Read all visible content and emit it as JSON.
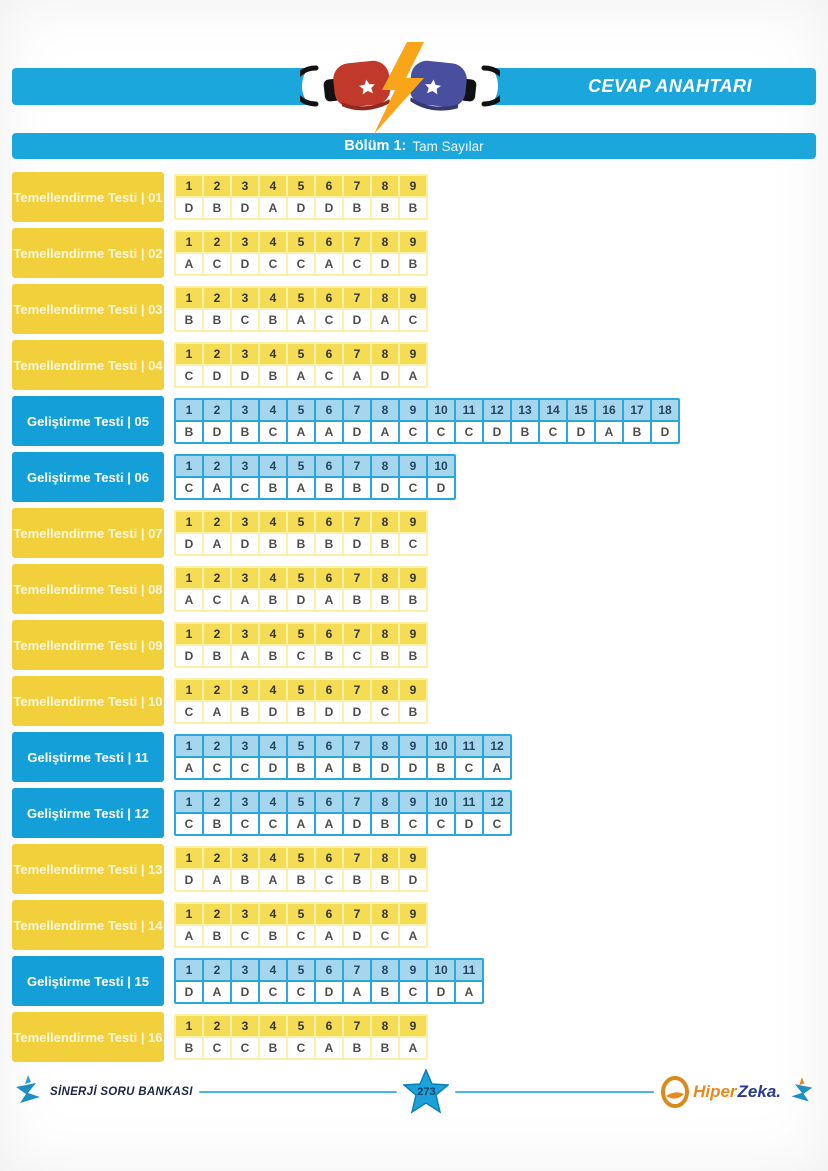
{
  "header": {
    "title": "CEVAP ANAHTARI",
    "section_bold": "Bölüm 1:",
    "section_name": "Tam Sayılar"
  },
  "tests": [
    {
      "label": "Temellendirme Testi | 01",
      "type": "temellendirme",
      "answers": [
        "D",
        "B",
        "D",
        "A",
        "D",
        "D",
        "B",
        "B",
        "B"
      ]
    },
    {
      "label": "Temellendirme Testi | 02",
      "type": "temellendirme",
      "answers": [
        "A",
        "C",
        "D",
        "C",
        "C",
        "A",
        "C",
        "D",
        "B"
      ]
    },
    {
      "label": "Temellendirme Testi | 03",
      "type": "temellendirme",
      "answers": [
        "B",
        "B",
        "C",
        "B",
        "A",
        "C",
        "D",
        "A",
        "C"
      ]
    },
    {
      "label": "Temellendirme Testi | 04",
      "type": "temellendirme",
      "answers": [
        "C",
        "D",
        "D",
        "B",
        "A",
        "C",
        "A",
        "D",
        "A"
      ]
    },
    {
      "label": "Geliştirme Testi | 05",
      "type": "gelistirme",
      "answers": [
        "B",
        "D",
        "B",
        "C",
        "A",
        "A",
        "D",
        "A",
        "C",
        "C",
        "C",
        "D",
        "B",
        "C",
        "D",
        "A",
        "B",
        "D"
      ]
    },
    {
      "label": "Geliştirme Testi | 06",
      "type": "gelistirme",
      "answers": [
        "C",
        "A",
        "C",
        "B",
        "A",
        "B",
        "B",
        "D",
        "C",
        "D"
      ]
    },
    {
      "label": "Temellendirme Testi | 07",
      "type": "temellendirme",
      "answers": [
        "D",
        "A",
        "D",
        "B",
        "B",
        "B",
        "D",
        "B",
        "C"
      ]
    },
    {
      "label": "Temellendirme Testi | 08",
      "type": "temellendirme",
      "answers": [
        "A",
        "C",
        "A",
        "B",
        "D",
        "A",
        "B",
        "B",
        "B"
      ]
    },
    {
      "label": "Temellendirme Testi | 09",
      "type": "temellendirme",
      "answers": [
        "D",
        "B",
        "A",
        "B",
        "C",
        "B",
        "C",
        "B",
        "B"
      ]
    },
    {
      "label": "Temellendirme Testi | 10",
      "type": "temellendirme",
      "answers": [
        "C",
        "A",
        "B",
        "D",
        "B",
        "D",
        "D",
        "C",
        "B"
      ]
    },
    {
      "label": "Geliştirme Testi | 11",
      "type": "gelistirme",
      "answers": [
        "A",
        "C",
        "C",
        "D",
        "B",
        "A",
        "B",
        "D",
        "D",
        "B",
        "C",
        "A"
      ]
    },
    {
      "label": "Geliştirme Testi | 12",
      "type": "gelistirme",
      "answers": [
        "C",
        "B",
        "C",
        "C",
        "A",
        "A",
        "D",
        "B",
        "C",
        "C",
        "D",
        "C"
      ]
    },
    {
      "label": "Temellendirme Testi | 13",
      "type": "temellendirme",
      "answers": [
        "D",
        "A",
        "B",
        "A",
        "B",
        "C",
        "B",
        "B",
        "D"
      ]
    },
    {
      "label": "Temellendirme Testi | 14",
      "type": "temellendirme",
      "answers": [
        "A",
        "B",
        "C",
        "B",
        "C",
        "A",
        "D",
        "C",
        "A"
      ]
    },
    {
      "label": "Geliştirme Testi | 15",
      "type": "gelistirme",
      "answers": [
        "D",
        "A",
        "D",
        "C",
        "C",
        "D",
        "A",
        "B",
        "C",
        "D",
        "A"
      ]
    },
    {
      "label": "Temellendirme Testi | 16",
      "type": "temellendirme",
      "answers": [
        "B",
        "C",
        "C",
        "B",
        "C",
        "A",
        "B",
        "B",
        "A"
      ]
    }
  ],
  "footer": {
    "brand_left": "SİNERJİ SORU BANKASI",
    "page_number": "273",
    "logo_hiper": "Hiper",
    "logo_zeka": "Zeka."
  },
  "colors": {
    "cyan_bar": "#1BA7DC",
    "yellow_label": "#F2D03C",
    "yellow_header_cell": "#F5DC55",
    "yellow_frame": "#FAF0A8",
    "blue_label": "#159FD8",
    "blue_header_cell": "#A6D6EE",
    "blue_frame": "#2AA7DB",
    "bolt_orange": "#F9A51A",
    "glove_red": "#C0392B",
    "glove_blue": "#4A4E9E",
    "footer_navy": "#1d2646",
    "logo_orange": "#E8891D",
    "logo_navy": "#2B3A8F"
  }
}
